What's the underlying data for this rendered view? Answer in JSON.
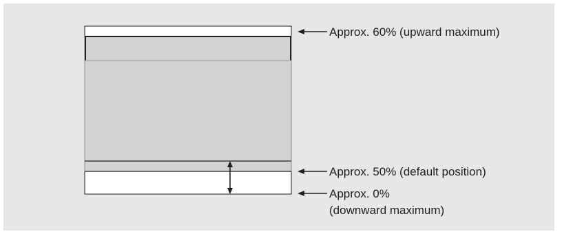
{
  "diagram": {
    "labels": {
      "upward_max": "Approx. 60% (upward maximum)",
      "default_position": "Approx. 50% (default position)",
      "downward_max_line1": "Approx. 0%",
      "downward_max_line2": "(downward maximum)"
    },
    "colors": {
      "background": "#e6e7e8",
      "screen_fill": "#d1d2d4",
      "outline": "#231f20",
      "empty_area": "#ffffff"
    }
  }
}
